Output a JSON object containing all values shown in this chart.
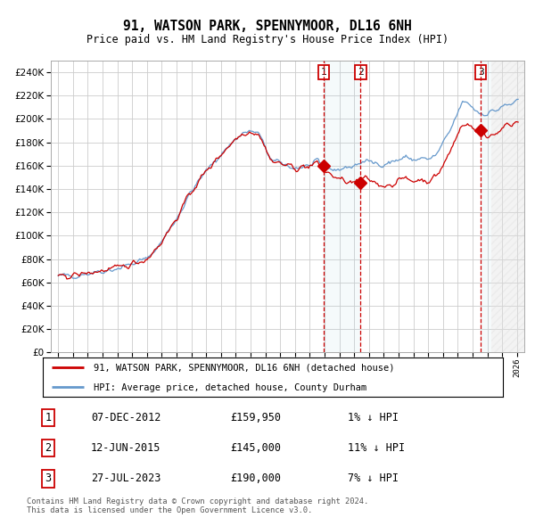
{
  "title": "91, WATSON PARK, SPENNYMOOR, DL16 6NH",
  "subtitle": "Price paid vs. HM Land Registry's House Price Index (HPI)",
  "hpi_label": "HPI: Average price, detached house, County Durham",
  "property_label": "91, WATSON PARK, SPENNYMOOR, DL16 6NH (detached house)",
  "sale_1_date": "07-DEC-2012",
  "sale_1_price": 159950,
  "sale_1_hpi": "1% ↓ HPI",
  "sale_2_date": "12-JUN-2015",
  "sale_2_price": 145000,
  "sale_2_hpi": "11% ↓ HPI",
  "sale_3_date": "27-JUL-2023",
  "sale_3_price": 190000,
  "sale_3_hpi": "7% ↓ HPI",
  "footnote": "Contains HM Land Registry data © Crown copyright and database right 2024.\nThis data is licensed under the Open Government Licence v3.0.",
  "red_color": "#cc0000",
  "blue_color": "#6699cc",
  "background_color": "#ffffff",
  "grid_color": "#cccccc",
  "sale1_x": 2012.92,
  "sale2_x": 2015.44,
  "sale3_x": 2023.56,
  "ylim_min": 0,
  "ylim_max": 250000,
  "xlim_min": 1994.5,
  "xlim_max": 2026.5,
  "hpi_anchors_x": [
    1995,
    1996,
    1997,
    1998,
    1999,
    2000,
    2001,
    2002,
    2003,
    2004,
    2005,
    2006,
    2007,
    2007.5,
    2008,
    2008.5,
    2009,
    2009.5,
    2010,
    2011,
    2012,
    2012.5,
    2013,
    2013.5,
    2014,
    2014.5,
    2015,
    2015.5,
    2016,
    2016.5,
    2017,
    2017.5,
    2018,
    2018.5,
    2019,
    2019.5,
    2020,
    2020.5,
    2021,
    2021.5,
    2022,
    2022.3,
    2022.6,
    2023,
    2023.5,
    2024,
    2024.5,
    2025,
    2025.5,
    2026
  ],
  "hpi_anchors_y": [
    65000,
    66000,
    68000,
    70000,
    72000,
    76000,
    80000,
    95000,
    115000,
    138000,
    155000,
    170000,
    183000,
    188000,
    189000,
    188000,
    175000,
    163000,
    162000,
    158000,
    160000,
    162000,
    158000,
    157000,
    157000,
    158000,
    160000,
    163000,
    163000,
    162000,
    162000,
    163000,
    165000,
    167000,
    165000,
    166000,
    165000,
    168000,
    178000,
    190000,
    205000,
    213000,
    215000,
    210000,
    205000,
    205000,
    207000,
    210000,
    212000,
    215000
  ],
  "prop_anchors_x": [
    1995,
    1996,
    1997,
    1998,
    1999,
    2000,
    2001,
    2002,
    2003,
    2004,
    2005,
    2006,
    2007,
    2007.5,
    2008,
    2008.5,
    2009,
    2009.5,
    2010,
    2011,
    2012,
    2012.5,
    2013,
    2013.5,
    2014,
    2014.5,
    2015,
    2015.5,
    2016,
    2016.5,
    2017,
    2017.5,
    2018,
    2018.5,
    2019,
    2019.5,
    2020,
    2020.5,
    2021,
    2021.5,
    2022,
    2022.3,
    2022.6,
    2023,
    2023.3,
    2023.56,
    2023.8,
    2024,
    2024.5,
    2025,
    2025.5,
    2026
  ],
  "prop_anchors_y": [
    65000,
    66000,
    68000,
    70000,
    72000,
    76000,
    80000,
    95000,
    115000,
    138000,
    155000,
    170000,
    183000,
    188000,
    189000,
    188000,
    175000,
    163000,
    162000,
    158000,
    159500,
    162000,
    155000,
    152000,
    148000,
    146000,
    145000,
    148000,
    148000,
    145000,
    143000,
    144000,
    147000,
    149000,
    147000,
    148000,
    147000,
    150000,
    160000,
    172000,
    187000,
    195000,
    197000,
    192000,
    188000,
    190000,
    188000,
    185000,
    187000,
    192000,
    195000,
    198000
  ]
}
